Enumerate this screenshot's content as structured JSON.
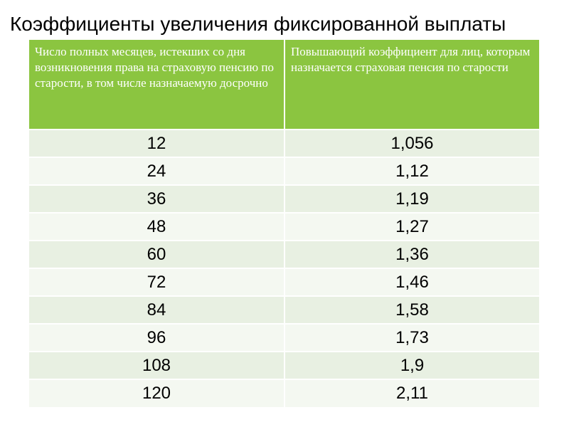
{
  "title": "Коэффициенты увеличения фиксированной выплаты",
  "table": {
    "headers": [
      "Число полных месяцев, истекших со дня возникновения права на страховую пенсию по старости, в том числе назначаемую досрочно",
      "Повышающий коэффициент для лиц, которым назначается страховая пенсия по старости"
    ],
    "rows": [
      [
        "12",
        "1,056"
      ],
      [
        "24",
        "1,12"
      ],
      [
        "36",
        "1,19"
      ],
      [
        "48",
        "1,27"
      ],
      [
        "60",
        "1,36"
      ],
      [
        "72",
        "1,46"
      ],
      [
        "84",
        "1,58"
      ],
      [
        "96",
        "1,73"
      ],
      [
        "108",
        "1,9"
      ],
      [
        "120",
        "2,11"
      ]
    ]
  },
  "colors": {
    "header_bg": "#8bc540",
    "header_text": "#ffffff",
    "row_odd": "#e8f0e2",
    "row_even": "#f4f8f1"
  }
}
